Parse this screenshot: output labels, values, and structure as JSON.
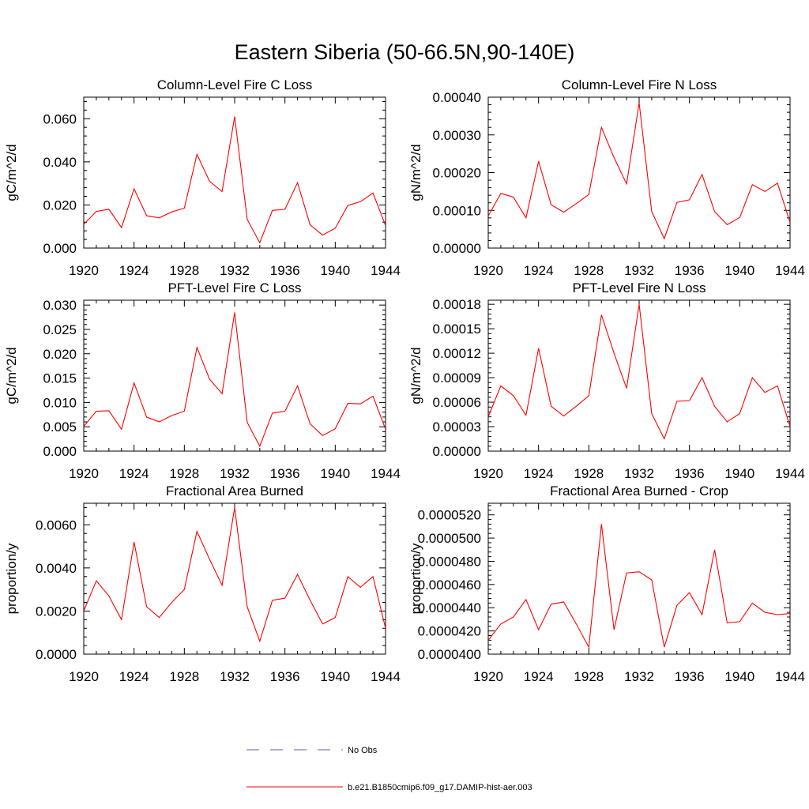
{
  "figure": {
    "title": "Eastern Siberia (50-66.5N,90-140E)",
    "legend": {
      "placement": "bottom-center",
      "entries": [
        {
          "label": "No Obs",
          "color": "#5a5ab4",
          "dash": true
        },
        {
          "label": "b.e21.B1850cmip6.f09_g17.DAMIP-hist-aer.003",
          "color": "#ff0000",
          "dash": false
        }
      ]
    }
  },
  "chart_data": [
    {
      "type": "line",
      "title": "Column-Level Fire C Loss",
      "ylabel": "gC/m^2/d",
      "xlim": [
        1920,
        1944
      ],
      "ylim": [
        0,
        0.07
      ],
      "xticks": [
        "1920",
        "1924",
        "1928",
        "1932",
        "1936",
        "1940",
        "1944"
      ],
      "yticks": [
        0,
        0.02,
        0.04,
        0.06
      ],
      "ytick_labels": [
        "0.000",
        "0.020",
        "0.040",
        "0.060"
      ],
      "series": [
        {
          "color": "#ff0000",
          "x": [
            1920,
            1921,
            1922,
            1923,
            1924,
            1925,
            1926,
            1927,
            1928,
            1929,
            1930,
            1931,
            1932,
            1933,
            1934,
            1935,
            1936,
            1937,
            1938,
            1939,
            1940,
            1941,
            1942,
            1943,
            1944
          ],
          "values": [
            0.011,
            0.017,
            0.018,
            0.0095,
            0.0275,
            0.015,
            0.014,
            0.0168,
            0.0185,
            0.0435,
            0.031,
            0.0262,
            0.061,
            0.0133,
            0.0025,
            0.0175,
            0.018,
            0.0303,
            0.0108,
            0.006,
            0.0092,
            0.0198,
            0.0215,
            0.0255,
            0.0105
          ]
        }
      ]
    },
    {
      "type": "line",
      "title": "Column-Level Fire N Loss",
      "ylabel": "gN/m^2/d",
      "xlim": [
        1920,
        1944
      ],
      "ylim": [
        0,
        0.0004
      ],
      "xticks": [
        "1920",
        "1924",
        "1928",
        "1932",
        "1936",
        "1940",
        "1944"
      ],
      "yticks": [
        0,
        0.0001,
        0.0002,
        0.0003,
        0.0004
      ],
      "ytick_labels": [
        "0.00000",
        "0.00010",
        "0.00020",
        "0.00030",
        "0.00040"
      ],
      "series": [
        {
          "color": "#ff0000",
          "x": [
            1920,
            1921,
            1922,
            1923,
            1924,
            1925,
            1926,
            1927,
            1928,
            1929,
            1930,
            1931,
            1932,
            1933,
            1934,
            1935,
            1936,
            1937,
            1938,
            1939,
            1940,
            1941,
            1942,
            1943,
            1944
          ],
          "values": [
            8.5e-05,
            0.000145,
            0.000135,
            8e-05,
            0.00023,
            0.000115,
            9.5e-05,
            0.000118,
            0.000142,
            0.00032,
            0.00024,
            0.00017,
            0.000385,
            9.7e-05,
            2.5e-05,
            0.000121,
            0.000128,
            0.000195,
            9.7e-05,
            6.2e-05,
            8.1e-05,
            0.000168,
            0.00015,
            0.000172,
            6.8e-05
          ]
        }
      ]
    },
    {
      "type": "line",
      "title": "PFT-Level Fire C Loss",
      "ylabel": "gC/m^2/d",
      "xlim": [
        1920,
        1944
      ],
      "ylim": [
        0,
        0.031
      ],
      "xticks": [
        "1920",
        "1924",
        "1928",
        "1932",
        "1936",
        "1940",
        "1944"
      ],
      "yticks": [
        0,
        0.005,
        0.01,
        0.015,
        0.02,
        0.025,
        0.03
      ],
      "ytick_labels": [
        "0.000",
        "0.005",
        "0.010",
        "0.015",
        "0.020",
        "0.025",
        "0.030"
      ],
      "series": [
        {
          "color": "#ff0000",
          "x": [
            1920,
            1921,
            1922,
            1923,
            1924,
            1925,
            1926,
            1927,
            1928,
            1929,
            1930,
            1931,
            1932,
            1933,
            1934,
            1935,
            1936,
            1937,
            1938,
            1939,
            1940,
            1941,
            1942,
            1943,
            1944
          ],
          "values": [
            0.0051,
            0.0082,
            0.0083,
            0.0045,
            0.014,
            0.007,
            0.006,
            0.0073,
            0.0082,
            0.0213,
            0.0148,
            0.0118,
            0.0285,
            0.0059,
            0.001,
            0.0078,
            0.0082,
            0.0134,
            0.0056,
            0.0032,
            0.0046,
            0.0098,
            0.0097,
            0.0113,
            0.0045
          ]
        }
      ]
    },
    {
      "type": "line",
      "title": "PFT-Level Fire N Loss",
      "ylabel": "gN/m^2/d",
      "xlim": [
        1920,
        1944
      ],
      "ylim": [
        0,
        0.000185
      ],
      "xticks": [
        "1920",
        "1924",
        "1928",
        "1932",
        "1936",
        "1940",
        "1944"
      ],
      "yticks": [
        0,
        3e-05,
        6e-05,
        9e-05,
        0.00012,
        0.00015,
        0.00018
      ],
      "ytick_labels": [
        "0.00000",
        "0.00003",
        "0.00006",
        "0.00009",
        "0.00012",
        "0.00015",
        "0.00018"
      ],
      "series": [
        {
          "color": "#ff0000",
          "x": [
            1920,
            1921,
            1922,
            1923,
            1924,
            1925,
            1926,
            1927,
            1928,
            1929,
            1930,
            1931,
            1932,
            1933,
            1934,
            1935,
            1936,
            1937,
            1938,
            1939,
            1940,
            1941,
            1942,
            1943,
            1944
          ],
          "values": [
            4.2e-05,
            8e-05,
            6.8e-05,
            4.4e-05,
            0.000126,
            5.5e-05,
            4.3e-05,
            5.5e-05,
            6.8e-05,
            0.000167,
            0.00012,
            7.7e-05,
            0.00018,
            4.6e-05,
            1.5e-05,
            6.1e-05,
            6.2e-05,
            9e-05,
            5.5e-05,
            3.6e-05,
            4.6e-05,
            9e-05,
            7.2e-05,
            8e-05,
            3e-05
          ]
        }
      ]
    },
    {
      "type": "line",
      "title": "Fractional Area Burned",
      "ylabel": "proportion/y",
      "xlim": [
        1920,
        1944
      ],
      "ylim": [
        0,
        0.007
      ],
      "xticks": [
        "1920",
        "1924",
        "1928",
        "1932",
        "1936",
        "1940",
        "1944"
      ],
      "yticks": [
        0,
        0.002,
        0.004,
        0.006
      ],
      "ytick_labels": [
        "0.0000",
        "0.0020",
        "0.0040",
        "0.0060"
      ],
      "series": [
        {
          "color": "#ff0000",
          "x": [
            1920,
            1921,
            1922,
            1923,
            1924,
            1925,
            1926,
            1927,
            1928,
            1929,
            1930,
            1931,
            1932,
            1933,
            1934,
            1935,
            1936,
            1937,
            1938,
            1939,
            1940,
            1941,
            1942,
            1943,
            1944
          ],
          "values": [
            0.002,
            0.0034,
            0.0027,
            0.0016,
            0.0052,
            0.0022,
            0.0017,
            0.0024,
            0.003,
            0.0057,
            0.0044,
            0.0032,
            0.0068,
            0.0022,
            0.0006,
            0.0025,
            0.0026,
            0.0037,
            0.0025,
            0.0014,
            0.0017,
            0.0036,
            0.0031,
            0.0036,
            0.0012
          ]
        }
      ]
    },
    {
      "type": "line",
      "title": "Fractional Area Burned - Crop",
      "ylabel": "proportion/y",
      "xlim": [
        1920,
        1944
      ],
      "ylim": [
        4e-05,
        5.3e-05
      ],
      "xticks": [
        "1920",
        "1924",
        "1928",
        "1932",
        "1936",
        "1940",
        "1944"
      ],
      "yticks": [
        4e-05,
        4.2e-05,
        4.4e-05,
        4.6e-05,
        4.8e-05,
        5e-05,
        5.2e-05
      ],
      "ytick_labels": [
        "0.0000400",
        "0.0000420",
        "0.0000440",
        "0.0000460",
        "0.0000480",
        "0.0000500",
        "0.0000520"
      ],
      "series": [
        {
          "color": "#ff0000",
          "x": [
            1920,
            1921,
            1922,
            1923,
            1924,
            1925,
            1926,
            1927,
            1928,
            1929,
            1930,
            1931,
            1932,
            1933,
            1934,
            1935,
            1936,
            1937,
            1938,
            1939,
            1940,
            1941,
            1942,
            1943,
            1944
          ],
          "values": [
            4.12e-05,
            4.26e-05,
            4.32e-05,
            4.47e-05,
            4.21e-05,
            4.43e-05,
            4.45e-05,
            4.26e-05,
            4.06e-05,
            5.12e-05,
            4.21e-05,
            4.7e-05,
            4.71e-05,
            4.64e-05,
            4.06e-05,
            4.42e-05,
            4.53e-05,
            4.34e-05,
            4.9e-05,
            4.27e-05,
            4.28e-05,
            4.44e-05,
            4.36e-05,
            4.34e-05,
            4.35e-05
          ]
        }
      ]
    }
  ]
}
